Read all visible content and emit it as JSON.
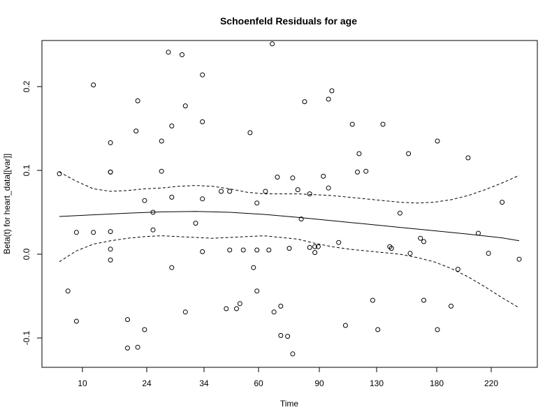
{
  "chart_data": {
    "type": "scatter",
    "title": "Schoenfeld Residuals for age",
    "xlabel": "Time",
    "ylabel": "Beta(t) for heart_data[[var]]",
    "ylim": [
      -0.135,
      0.255
    ],
    "x_ticks": [
      "10",
      "24",
      "34",
      "60",
      "90",
      "130",
      "180",
      "220"
    ],
    "y_ticks": [
      -0.1,
      0.0,
      0.1,
      0.2
    ],
    "y_tick_labels": [
      "-0.1",
      "0.0",
      "0.1",
      "0.2"
    ],
    "grid": false,
    "legend": "none",
    "points": [
      [
        0.0,
        0.096
      ],
      [
        0.5,
        -0.044
      ],
      [
        1.0,
        0.026
      ],
      [
        1.0,
        -0.08
      ],
      [
        2.0,
        0.202
      ],
      [
        2.0,
        0.026
      ],
      [
        3.0,
        0.098
      ],
      [
        3.0,
        0.098
      ],
      [
        3.0,
        0.133
      ],
      [
        3.0,
        0.027
      ],
      [
        3.0,
        0.006
      ],
      [
        3.0,
        -0.007
      ],
      [
        4.0,
        -0.078
      ],
      [
        4.0,
        -0.112
      ],
      [
        4.5,
        0.147
      ],
      [
        4.6,
        0.183
      ],
      [
        4.6,
        -0.111
      ],
      [
        5.0,
        0.064
      ],
      [
        5.0,
        -0.09
      ],
      [
        5.5,
        0.05
      ],
      [
        5.5,
        0.029
      ],
      [
        6.0,
        0.135
      ],
      [
        6.0,
        0.099
      ],
      [
        6.4,
        0.241
      ],
      [
        6.6,
        0.153
      ],
      [
        6.6,
        0.068
      ],
      [
        6.6,
        -0.016
      ],
      [
        7.2,
        0.238
      ],
      [
        7.4,
        0.177
      ],
      [
        7.4,
        -0.069
      ],
      [
        8.0,
        0.037
      ],
      [
        8.4,
        0.214
      ],
      [
        8.4,
        0.158
      ],
      [
        8.4,
        0.066
      ],
      [
        8.4,
        0.003
      ],
      [
        9.5,
        0.075
      ],
      [
        9.8,
        -0.065
      ],
      [
        10.0,
        0.075
      ],
      [
        10.0,
        0.005
      ],
      [
        10.4,
        -0.065
      ],
      [
        10.6,
        -0.059
      ],
      [
        10.8,
        0.005
      ],
      [
        11.2,
        0.145
      ],
      [
        11.4,
        -0.016
      ],
      [
        11.6,
        0.061
      ],
      [
        11.6,
        0.005
      ],
      [
        11.6,
        -0.044
      ],
      [
        12.1,
        0.075
      ],
      [
        12.3,
        0.005
      ],
      [
        12.5,
        0.251
      ],
      [
        12.6,
        -0.069
      ],
      [
        12.8,
        0.092
      ],
      [
        13.0,
        -0.062
      ],
      [
        13.0,
        -0.097
      ],
      [
        13.4,
        -0.098
      ],
      [
        13.5,
        0.007
      ],
      [
        13.7,
        0.091
      ],
      [
        13.7,
        -0.119
      ],
      [
        14.0,
        0.077
      ],
      [
        14.2,
        0.042
      ],
      [
        14.4,
        0.182
      ],
      [
        14.7,
        0.072
      ],
      [
        14.7,
        0.008
      ],
      [
        15.0,
        0.009
      ],
      [
        15.0,
        0.002
      ],
      [
        15.2,
        0.009
      ],
      [
        15.5,
        0.093
      ],
      [
        15.8,
        0.185
      ],
      [
        15.8,
        0.079
      ],
      [
        16.0,
        0.195
      ],
      [
        16.4,
        0.014
      ],
      [
        16.8,
        -0.085
      ],
      [
        17.2,
        0.155
      ],
      [
        17.5,
        0.098
      ],
      [
        17.6,
        0.12
      ],
      [
        18.0,
        0.099
      ],
      [
        18.4,
        -0.055
      ],
      [
        18.7,
        -0.09
      ],
      [
        19.0,
        0.155
      ],
      [
        19.4,
        0.009
      ],
      [
        19.5,
        0.007
      ],
      [
        20.0,
        0.049
      ],
      [
        20.5,
        0.12
      ],
      [
        20.6,
        0.001
      ],
      [
        21.2,
        0.019
      ],
      [
        21.4,
        0.015
      ],
      [
        21.4,
        -0.055
      ],
      [
        22.2,
        0.135
      ],
      [
        22.2,
        -0.09
      ],
      [
        23.0,
        -0.062
      ],
      [
        23.4,
        -0.018
      ],
      [
        24.0,
        0.115
      ],
      [
        24.6,
        0.025
      ],
      [
        25.2,
        0.001
      ],
      [
        26.0,
        0.062
      ],
      [
        27.0,
        -0.006
      ]
    ],
    "series": [
      {
        "style": "solid",
        "x": [
          0,
          2,
          4,
          6,
          8,
          10,
          12,
          14,
          16,
          18,
          20,
          22,
          24,
          26,
          27
        ],
        "values": [
          0.045,
          0.047,
          0.049,
          0.0505,
          0.051,
          0.05,
          0.0475,
          0.044,
          0.04,
          0.036,
          0.032,
          0.028,
          0.024,
          0.0195,
          0.016
        ]
      },
      {
        "style": "dashed",
        "x": [
          0,
          1,
          2,
          3,
          4,
          5,
          6,
          7,
          8,
          9,
          10,
          11,
          12,
          13,
          14,
          15,
          16,
          17,
          18,
          19,
          20,
          21,
          22,
          23,
          24,
          25,
          26,
          27
        ],
        "values": [
          0.098,
          0.087,
          0.078,
          0.075,
          0.076,
          0.078,
          0.079,
          0.081,
          0.082,
          0.081,
          0.078,
          0.074,
          0.072,
          0.072,
          0.072,
          0.071,
          0.07,
          0.068,
          0.066,
          0.064,
          0.062,
          0.061,
          0.062,
          0.065,
          0.07,
          0.077,
          0.085,
          0.094
        ]
      },
      {
        "style": "dashed",
        "x": [
          0,
          1,
          2,
          3,
          4,
          5,
          6,
          7,
          8,
          9,
          10,
          11,
          12,
          13,
          14,
          15,
          16,
          17,
          18,
          19,
          20,
          21,
          22,
          23,
          24,
          25,
          26,
          27
        ],
        "values": [
          -0.009,
          0.004,
          0.012,
          0.016,
          0.019,
          0.021,
          0.022,
          0.021,
          0.02,
          0.019,
          0.02,
          0.021,
          0.022,
          0.02,
          0.018,
          0.013,
          0.009,
          0.006,
          0.004,
          0.002,
          0.0,
          -0.004,
          -0.009,
          -0.017,
          -0.027,
          -0.039,
          -0.052,
          -0.064
        ]
      }
    ]
  }
}
